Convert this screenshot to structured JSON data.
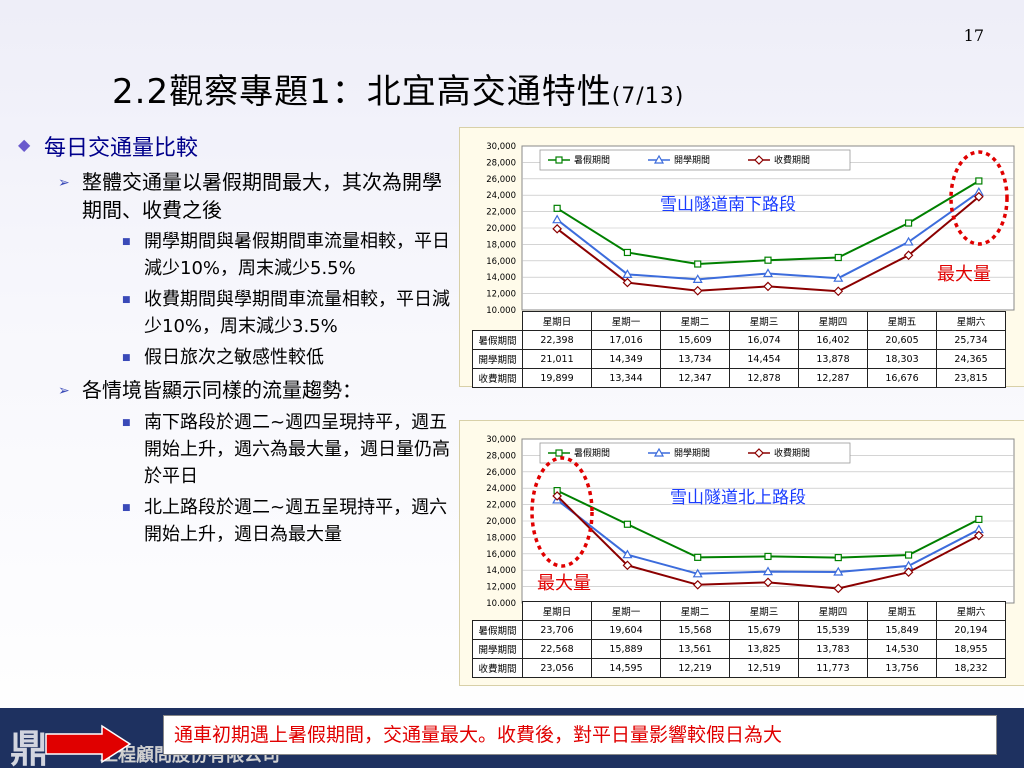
{
  "page_number": "17",
  "title": {
    "main": "2.2觀察專題1：北宜高交通特性",
    "sub": "(7/13)"
  },
  "bullets": {
    "b1": "每日交通量比較",
    "b1_1": "整體交通量以暑假期間最大，其次為開學期間、收費之後",
    "b1_1_1": "開學期間與暑假期間車流量相較，平日減少10%，周末減少5.5%",
    "b1_1_2": "收費期間與學期間車流量相較，平日減少10%，周末減少3.5%",
    "b1_1_3": "假日旅次之敏感性較低",
    "b1_2": "各情境皆顯示同樣的流量趨勢：",
    "b1_2_1": "南下路段於週二~週四呈現持平，週五開始上升，週六為最大量，週日量仍高於平日",
    "b1_2_2": "北上路段於週二~週五呈現持平，週六開始上升，週日為最大量"
  },
  "charts_text": {
    "seg1": "雪山隧道南下路段",
    "seg2": "雪山隧道北上路段",
    "max1": "最大量",
    "max2": "最大量"
  },
  "footer": {
    "logo": "鼎",
    "company": "工程顧問股份有限公司",
    "note": "通車初期遇上暑假期間，交通量最大。收費後，對平日量影響較假日為大"
  },
  "colors": {
    "summer": "#008000",
    "school": "#3c6cdc",
    "toll": "#8b0000",
    "highlight": "#e00000"
  },
  "chart_data": [
    {
      "type": "line",
      "categories": [
        "星期日",
        "星期一",
        "星期二",
        "星期三",
        "星期四",
        "星期五",
        "星期六"
      ],
      "series": [
        {
          "name": "暑假期間",
          "values": [
            22398,
            17016,
            15609,
            16074,
            16402,
            20605,
            25734
          ],
          "labels": [
            "22,398",
            "17,016",
            "15,609",
            "16,074",
            "16,402",
            "20,605",
            "25,734"
          ]
        },
        {
          "name": "開學期間",
          "values": [
            21011,
            14349,
            13734,
            14454,
            13878,
            18303,
            24365
          ],
          "labels": [
            "21,011",
            "14,349",
            "13,734",
            "14,454",
            "13,878",
            "18,303",
            "24,365"
          ]
        },
        {
          "name": "收費期間",
          "values": [
            19899,
            13344,
            12347,
            12878,
            12287,
            16676,
            23815
          ],
          "labels": [
            "19,899",
            "13,344",
            "12,347",
            "12,878",
            "12,287",
            "16,676",
            "23,815"
          ]
        }
      ],
      "ylim": [
        10000,
        30000
      ],
      "yticks": [
        "10,000",
        "12,000",
        "14,000",
        "16,000",
        "18,000",
        "20,000",
        "22,000",
        "24,000",
        "26,000",
        "28,000",
        "30,000"
      ],
      "legend": "top"
    },
    {
      "type": "line",
      "categories": [
        "星期日",
        "星期一",
        "星期二",
        "星期三",
        "星期四",
        "星期五",
        "星期六"
      ],
      "series": [
        {
          "name": "暑假期間",
          "values": [
            23706,
            19604,
            15568,
            15679,
            15539,
            15849,
            20194
          ],
          "labels": [
            "23,706",
            "19,604",
            "15,568",
            "15,679",
            "15,539",
            "15,849",
            "20,194"
          ]
        },
        {
          "name": "開學期間",
          "values": [
            22568,
            15889,
            13561,
            13825,
            13783,
            14530,
            18955
          ],
          "labels": [
            "22,568",
            "15,889",
            "13,561",
            "13,825",
            "13,783",
            "14,530",
            "18,955"
          ]
        },
        {
          "name": "收費期間",
          "values": [
            23056,
            14595,
            12219,
            12519,
            11773,
            13756,
            18232
          ],
          "labels": [
            "23,056",
            "14,595",
            "12,219",
            "12,519",
            "11,773",
            "13,756",
            "18,232"
          ]
        }
      ],
      "ylim": [
        10000,
        30000
      ],
      "yticks": [
        "10,000",
        "12,000",
        "14,000",
        "16,000",
        "18,000",
        "20,000",
        "22,000",
        "24,000",
        "26,000",
        "28,000",
        "30,000"
      ],
      "legend": "top"
    }
  ]
}
